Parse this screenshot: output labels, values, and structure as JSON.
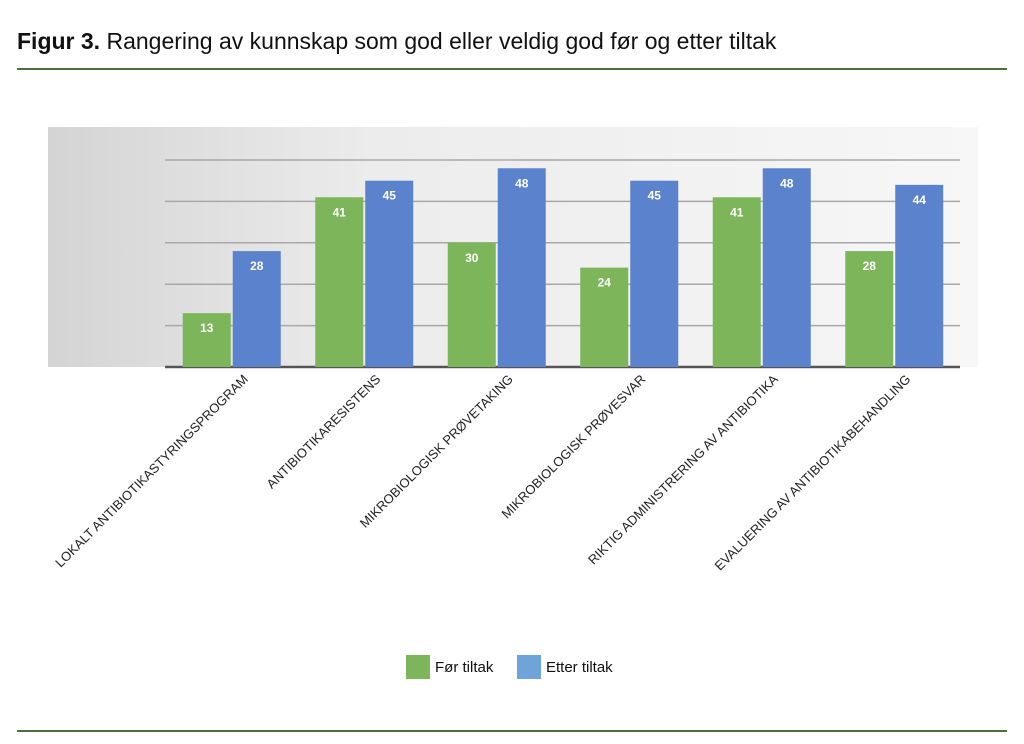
{
  "figure": {
    "label": "Figur 3.",
    "title": "Rangering av kunnskap som god eller veldig god før og etter tiltak"
  },
  "chart_data": {
    "type": "bar",
    "title": "",
    "xlabel": "",
    "ylabel": "",
    "ylim": [
      0,
      50
    ],
    "grid": true,
    "legend": "bottom",
    "categories": [
      "LOKALT ANTIBIOTIKASTYRINGSPROGRAM",
      "ANTIBIOTIKARESISTENS",
      "MIKROBIOLOGISK PRØVETAKING",
      "MIKROBIOLOGISK PRØVESVAR",
      "RIKTIG ADMINISTRERING AV ANTIBIOTIKA",
      "EVALUERING AV ANTIBIOTIKABEHANDLING"
    ],
    "series": [
      {
        "name": "Før tiltak",
        "color": "#7db55a",
        "values": [
          13,
          41,
          30,
          24,
          41,
          28
        ]
      },
      {
        "name": "Etter tiltak",
        "color": "#5b82cc",
        "legend_color": "#6fa4d8",
        "values": [
          28,
          45,
          48,
          45,
          48,
          44
        ]
      }
    ]
  }
}
